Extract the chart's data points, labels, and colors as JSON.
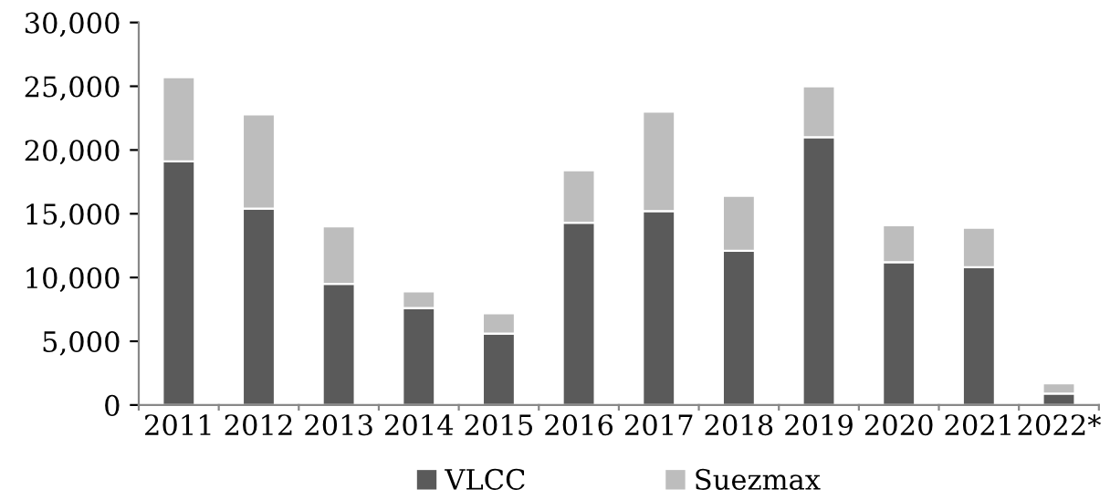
{
  "chart_data": {
    "type": "bar",
    "stacked": true,
    "categories": [
      "2011",
      "2012",
      "2013",
      "2014",
      "2015",
      "2016",
      "2017",
      "2018",
      "2019",
      "2020",
      "2021",
      "2022*"
    ],
    "series": [
      {
        "name": "VLCC",
        "color": "#5a5a5a",
        "values": [
          19100,
          15400,
          9500,
          7600,
          5600,
          14300,
          15200,
          12100,
          21000,
          11200,
          10800,
          900
        ]
      },
      {
        "name": "Suezmax",
        "color": "#bdbdbd",
        "values": [
          6600,
          7400,
          4500,
          1300,
          1600,
          4100,
          7800,
          4300,
          4000,
          2900,
          3100,
          800
        ]
      }
    ],
    "ylim": [
      0,
      30000
    ],
    "yticks": [
      {
        "value": 0,
        "label": "0"
      },
      {
        "value": 5000,
        "label": "5,000"
      },
      {
        "value": 10000,
        "label": "10,000"
      },
      {
        "value": 15000,
        "label": "15,000"
      },
      {
        "value": 20000,
        "label": "20,000"
      },
      {
        "value": 25000,
        "label": "25,000"
      },
      {
        "value": 30000,
        "label": "30,000"
      }
    ],
    "grid": false,
    "legend": "bottom"
  }
}
